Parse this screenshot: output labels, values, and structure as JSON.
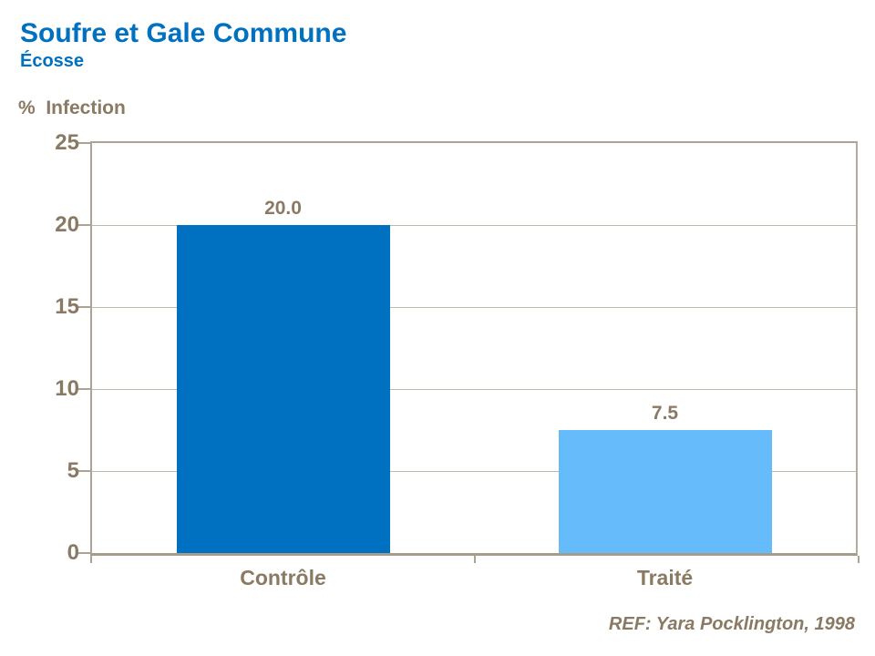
{
  "title": "Soufre et Gale Commune",
  "subtitle": "Écosse",
  "y_axis_title": "%  Infection",
  "reference": "REF: Yara Pocklington, 1998",
  "colors": {
    "title_blue": "#0070C0",
    "text_brown": "#8A7A63",
    "axis_line": "#ACA395",
    "gridline": "#BFB8AC",
    "background": "#FFFFFF"
  },
  "chart_data": {
    "type": "bar",
    "title": "Soufre et Gale Commune",
    "subtitle": "Écosse",
    "ylabel": "% Infection",
    "xlabel": "",
    "categories": [
      "Contrôle",
      "Traité"
    ],
    "values": [
      20.0,
      7.5
    ],
    "value_labels": [
      "20.0",
      "7.5"
    ],
    "bar_colors": [
      "#0070C0",
      "#66BBFA"
    ],
    "ylim": [
      0,
      25
    ],
    "yticks": [
      0,
      5,
      10,
      15,
      20,
      25
    ],
    "grid": true,
    "legend": false,
    "annotation": "REF: Yara Pocklington, 1998"
  }
}
